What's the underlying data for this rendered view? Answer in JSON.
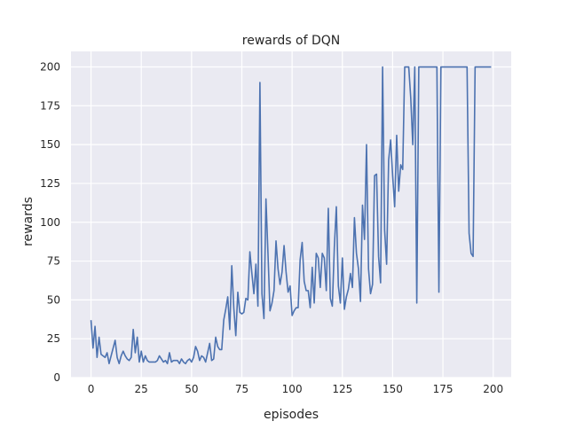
{
  "chart_data": {
    "type": "line",
    "title": "rewards of DQN",
    "xlabel": "episodes",
    "ylabel": "rewards",
    "xlim": [
      -9.95,
      208.95
    ],
    "ylim": [
      0,
      210
    ],
    "xticks": [
      0,
      25,
      50,
      75,
      100,
      125,
      150,
      175,
      200
    ],
    "yticks": [
      0,
      25,
      50,
      75,
      100,
      125,
      150,
      175,
      200
    ],
    "grid": true,
    "background": "#EAEAF2",
    "line_color": "#4C72B0",
    "series": [
      {
        "values": [
          37,
          19,
          33,
          13,
          26,
          15,
          14,
          13,
          16,
          9,
          14,
          19,
          24,
          13,
          9,
          14,
          17,
          14,
          12,
          11,
          13,
          31,
          16,
          26,
          10,
          17,
          10,
          14,
          11,
          10,
          10,
          10,
          10,
          11,
          14,
          12,
          10,
          11,
          9,
          16,
          10,
          11,
          11,
          11,
          9,
          12,
          10,
          9,
          11,
          12,
          10,
          13,
          20,
          17,
          11,
          14,
          13,
          10,
          16,
          22,
          11,
          12,
          26,
          20,
          18,
          18,
          37,
          44,
          52,
          31,
          72,
          45,
          27,
          55,
          42,
          41,
          42,
          51,
          50,
          81,
          67,
          54,
          73,
          46,
          190,
          54,
          38,
          115,
          80,
          43,
          48,
          56,
          88,
          70,
          60,
          68,
          85,
          68,
          55,
          59,
          40,
          43,
          45,
          45,
          76,
          87,
          62,
          56,
          56,
          45,
          71,
          48,
          80,
          77,
          58,
          80,
          77,
          56,
          109,
          51,
          46,
          84,
          110,
          59,
          48,
          77,
          44,
          52,
          57,
          67,
          58,
          103,
          80,
          70,
          49,
          111,
          89,
          150,
          70,
          54,
          60,
          130,
          131,
          78,
          61,
          200,
          95,
          73,
          140,
          153,
          130,
          110,
          156,
          120,
          137,
          134,
          200,
          200,
          200,
          180,
          150,
          200,
          48,
          200,
          200,
          200,
          200,
          200,
          200,
          200,
          200,
          200,
          200,
          55,
          200,
          200,
          200,
          200,
          200,
          200,
          200,
          200,
          200,
          200,
          200,
          200,
          200,
          200,
          93,
          80,
          78,
          200,
          200,
          200,
          200,
          200,
          200,
          200,
          200,
          200
        ]
      }
    ]
  }
}
